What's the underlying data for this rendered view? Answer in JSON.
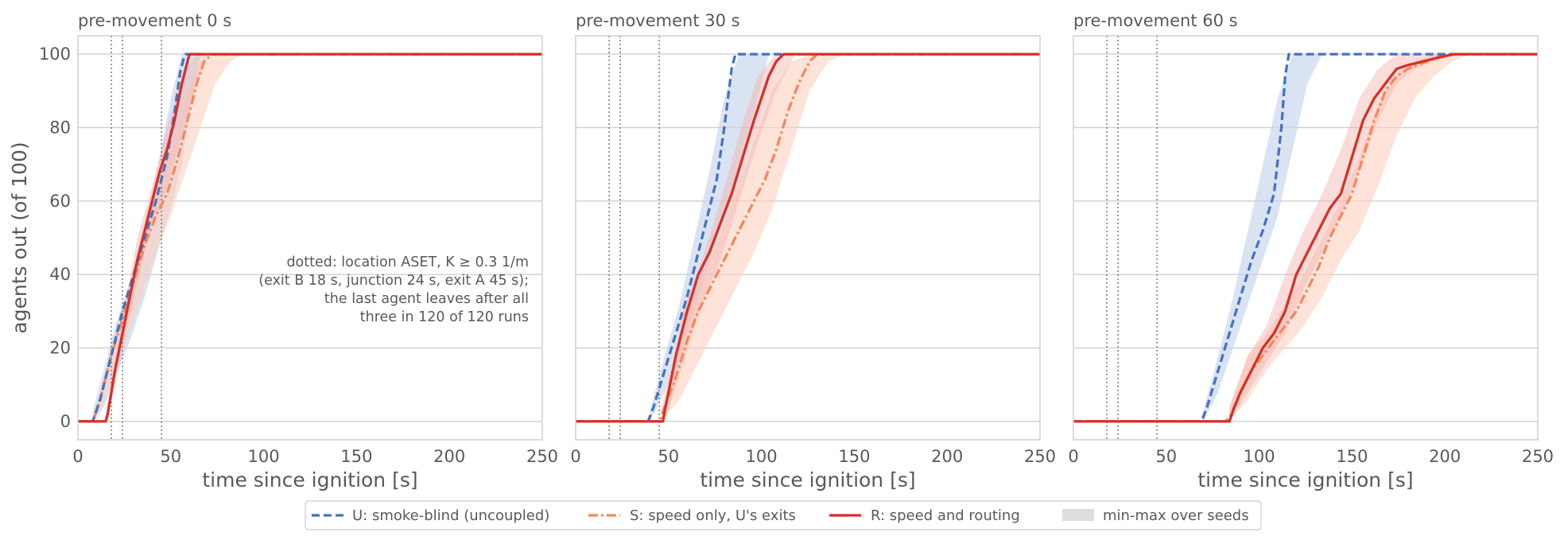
{
  "colors": {
    "U": "#4472c4",
    "S": "#f4885c",
    "R": "#d63027",
    "band_U": "#c6d4ea",
    "band_S": "#fdd1c0",
    "band_R": "#f4b2ac",
    "legend_band": "#dddddd",
    "grid": "#cfcfcf",
    "frame": "#cccccc",
    "dotted": "#666666"
  },
  "chart_data": [
    {
      "type": "line",
      "title": "pre-movement 0 s",
      "xlabel": "time since ignition [s]",
      "ylabel": "agents out (of 100)",
      "xlim": [
        0,
        250
      ],
      "ylim": [
        -5,
        105
      ],
      "xticks": [
        0,
        50,
        100,
        150,
        200,
        250
      ],
      "yticks": [
        0,
        20,
        40,
        60,
        80,
        100
      ],
      "grid": "horizontal",
      "vlines": [
        18,
        24,
        45
      ],
      "annotation": "dotted: location ASET, K ≥ 0.3 1/m\n(exit B 18 s, junction 24 s, exit A 45 s);\nthe last agent leaves after all\nthree in 120 of 120 runs",
      "series": [
        {
          "id": "U",
          "x": [
            0,
            8,
            12,
            18,
            24,
            30,
            36,
            42,
            48,
            52,
            55,
            57,
            58,
            250
          ],
          "y": [
            0,
            0,
            6,
            18,
            30,
            40,
            50,
            60,
            72,
            84,
            95,
            99,
            100,
            100
          ],
          "band_x": [
            8,
            14,
            20,
            28,
            36,
            44,
            50,
            56,
            60,
            66
          ],
          "band_lo": [
            0,
            4,
            12,
            22,
            34,
            48,
            58,
            70,
            84,
            100
          ],
          "band_hi": [
            3,
            14,
            26,
            38,
            54,
            72,
            88,
            100,
            100,
            100
          ]
        },
        {
          "id": "S",
          "x": [
            0,
            8,
            12,
            18,
            24,
            30,
            36,
            42,
            48,
            54,
            60,
            64,
            68,
            72,
            250
          ],
          "y": [
            0,
            0,
            6,
            18,
            28,
            38,
            48,
            56,
            62,
            72,
            84,
            92,
            98,
            100,
            100
          ],
          "band_x": [
            10,
            18,
            26,
            34,
            42,
            50,
            58,
            66,
            74,
            82,
            90
          ],
          "band_lo": [
            0,
            10,
            22,
            34,
            46,
            56,
            68,
            80,
            92,
            98,
            100
          ],
          "band_hi": [
            4,
            18,
            32,
            48,
            62,
            74,
            88,
            98,
            100,
            100,
            100
          ]
        },
        {
          "id": "R",
          "x": [
            0,
            15,
            16,
            20,
            24,
            28,
            32,
            36,
            40,
            44,
            48,
            52,
            56,
            60,
            250
          ],
          "y": [
            0,
            0,
            2,
            14,
            24,
            34,
            44,
            52,
            60,
            68,
            74,
            82,
            92,
            100,
            100
          ],
          "band_x": [
            16,
            24,
            32,
            40,
            48,
            56,
            64,
            70
          ],
          "band_lo": [
            0,
            20,
            38,
            54,
            64,
            78,
            92,
            100
          ],
          "band_hi": [
            4,
            28,
            50,
            64,
            80,
            94,
            100,
            100
          ]
        }
      ]
    },
    {
      "type": "line",
      "title": "pre-movement 30 s",
      "xlabel": "time since ignition [s]",
      "ylabel": "",
      "xlim": [
        0,
        250
      ],
      "ylim": [
        -5,
        105
      ],
      "xticks": [
        0,
        50,
        100,
        150,
        200,
        250
      ],
      "yticks": [
        0,
        20,
        40,
        60,
        80,
        100
      ],
      "grid": "horizontal",
      "vlines": [
        18,
        24,
        45
      ],
      "series": [
        {
          "id": "U",
          "x": [
            0,
            39,
            42,
            48,
            54,
            60,
            66,
            72,
            76,
            80,
            84,
            86,
            250
          ],
          "y": [
            0,
            0,
            4,
            14,
            24,
            34,
            46,
            58,
            66,
            80,
            96,
            100,
            100
          ],
          "band_x": [
            40,
            48,
            56,
            64,
            72,
            80,
            88,
            96,
            104
          ],
          "band_lo": [
            0,
            8,
            18,
            30,
            44,
            56,
            70,
            84,
            100
          ],
          "band_hi": [
            3,
            18,
            32,
            50,
            68,
            88,
            100,
            100,
            100
          ]
        },
        {
          "id": "S",
          "x": [
            0,
            45,
            48,
            54,
            60,
            66,
            72,
            78,
            84,
            90,
            96,
            102,
            108,
            114,
            120,
            126,
            130,
            250
          ],
          "y": [
            0,
            0,
            4,
            12,
            22,
            30,
            36,
            42,
            48,
            54,
            60,
            66,
            74,
            84,
            92,
            98,
            100,
            100
          ],
          "band_x": [
            46,
            56,
            66,
            76,
            86,
            96,
            106,
            116,
            126,
            136,
            146
          ],
          "band_lo": [
            0,
            6,
            16,
            26,
            36,
            46,
            58,
            74,
            90,
            98,
            100
          ],
          "band_hi": [
            4,
            24,
            38,
            48,
            62,
            76,
            90,
            98,
            100,
            100,
            100
          ]
        },
        {
          "id": "R",
          "x": [
            0,
            47,
            48,
            54,
            60,
            66,
            72,
            78,
            84,
            90,
            96,
            100,
            104,
            108,
            112,
            250
          ],
          "y": [
            0,
            0,
            3,
            18,
            30,
            40,
            46,
            54,
            62,
            72,
            82,
            88,
            94,
            98,
            100,
            100
          ],
          "band_x": [
            48,
            58,
            68,
            78,
            88,
            98,
            108,
            118
          ],
          "band_lo": [
            0,
            16,
            32,
            44,
            60,
            76,
            90,
            100
          ],
          "band_hi": [
            4,
            30,
            44,
            60,
            78,
            94,
            100,
            100
          ]
        }
      ]
    },
    {
      "type": "line",
      "title": "pre-movement 60 s",
      "xlabel": "time since ignition [s]",
      "ylabel": "",
      "xlim": [
        0,
        250
      ],
      "ylim": [
        -5,
        105
      ],
      "xticks": [
        0,
        50,
        100,
        150,
        200,
        250
      ],
      "yticks": [
        0,
        20,
        40,
        60,
        80,
        100
      ],
      "grid": "horizontal",
      "vlines": [
        18,
        24,
        45
      ],
      "series": [
        {
          "id": "U",
          "x": [
            0,
            69,
            72,
            78,
            84,
            90,
            96,
            102,
            108,
            112,
            114,
            116,
            250
          ],
          "y": [
            0,
            0,
            4,
            14,
            24,
            34,
            44,
            52,
            62,
            80,
            94,
            100,
            100
          ],
          "band_x": [
            70,
            78,
            86,
            94,
            102,
            110,
            118,
            126,
            134
          ],
          "band_lo": [
            0,
            8,
            20,
            32,
            44,
            56,
            74,
            92,
            100
          ],
          "band_hi": [
            3,
            18,
            34,
            52,
            70,
            88,
            100,
            100,
            100
          ]
        },
        {
          "id": "S",
          "x": [
            0,
            82,
            85,
            90,
            96,
            102,
            108,
            114,
            120,
            126,
            132,
            138,
            144,
            150,
            156,
            162,
            168,
            174,
            180,
            190,
            200,
            250
          ],
          "y": [
            0,
            0,
            2,
            8,
            14,
            18,
            22,
            26,
            30,
            36,
            42,
            50,
            56,
            62,
            72,
            82,
            90,
            94,
            96,
            98,
            100,
            100
          ],
          "band_x": [
            84,
            94,
            104,
            114,
            124,
            134,
            144,
            154,
            164,
            174,
            184,
            194,
            204,
            214
          ],
          "band_lo": [
            0,
            6,
            14,
            20,
            26,
            34,
            44,
            52,
            64,
            78,
            88,
            94,
            98,
            100
          ],
          "band_hi": [
            4,
            18,
            24,
            32,
            40,
            50,
            60,
            72,
            86,
            94,
            98,
            100,
            100,
            100
          ]
        },
        {
          "id": "R",
          "x": [
            0,
            84,
            86,
            90,
            96,
            102,
            108,
            114,
            120,
            126,
            132,
            138,
            144,
            150,
            156,
            162,
            168,
            174,
            180,
            188,
            196,
            205,
            250
          ],
          "y": [
            0,
            0,
            3,
            8,
            14,
            20,
            24,
            30,
            40,
            46,
            52,
            58,
            62,
            72,
            82,
            88,
            92,
            96,
            97,
            98,
            99,
            100,
            100
          ],
          "band_x": [
            84,
            94,
            104,
            114,
            124,
            134,
            144,
            154,
            164,
            174,
            184,
            194,
            204
          ],
          "band_lo": [
            0,
            8,
            16,
            24,
            36,
            46,
            56,
            68,
            82,
            92,
            96,
            98,
            100
          ],
          "band_hi": [
            4,
            18,
            26,
            40,
            52,
            62,
            74,
            88,
            96,
            100,
            100,
            100,
            100
          ]
        }
      ]
    }
  ],
  "legend": {
    "placement": "bottom-center",
    "items": [
      {
        "id": "U",
        "label": "U: smoke-blind (uncoupled)"
      },
      {
        "id": "S",
        "label": "S: speed only, U's exits"
      },
      {
        "id": "R",
        "label": "R: speed and routing"
      },
      {
        "id": "band",
        "label": "min-max over seeds"
      }
    ]
  }
}
